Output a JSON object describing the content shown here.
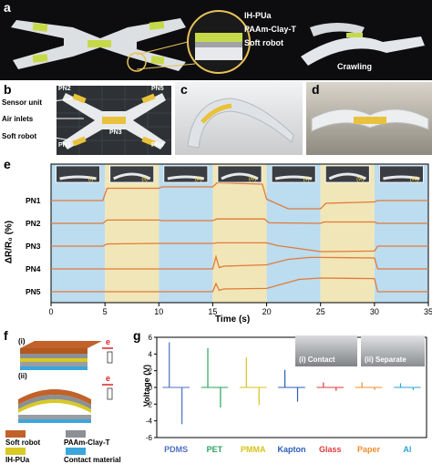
{
  "panel_a": {
    "label": "a",
    "layer_labels": [
      "IH-PUa",
      "PAAm-Clay-T",
      "Soft robot"
    ],
    "caption": "Crawling"
  },
  "panel_b": {
    "label": "b",
    "pn_labels": [
      "PN2",
      "PN5",
      "PN3",
      "PN1",
      "PN4"
    ],
    "callouts": [
      "Sensor unit",
      "Air inlets",
      "Soft robot"
    ]
  },
  "panel_c": {
    "label": "c"
  },
  "panel_d": {
    "label": "d"
  },
  "panel_e": {
    "label": "e",
    "stage_labels": [
      "(i)",
      "(ii)",
      "(iii)",
      "(iv)",
      "(v)",
      "(vi)",
      "(vii)"
    ]
  },
  "panel_f": {
    "label": "f",
    "sub_labels": [
      "(i)",
      "(ii)"
    ],
    "electron": "e",
    "legend": [
      "Soft robot",
      "PAAm-Clay-T",
      "IH-PUa",
      "Contact material"
    ]
  },
  "panel_g": {
    "label": "g",
    "inset_labels": [
      "(i) Contact",
      "(ii) Separate"
    ]
  },
  "chart_data": [
    {
      "type": "line",
      "panel": "e",
      "xlabel": "Time (s)",
      "ylabel": "ΔR/R₀ (%)",
      "xlim": [
        0,
        35
      ],
      "xticks": [
        0,
        5,
        10,
        15,
        20,
        25,
        30,
        35
      ],
      "shaded_regions": [
        {
          "x0": 0,
          "x1": 5,
          "color": "#bcdcef"
        },
        {
          "x0": 5,
          "x1": 10,
          "color": "#f1e6b8"
        },
        {
          "x0": 10,
          "x1": 15,
          "color": "#bcdcef"
        },
        {
          "x0": 15,
          "x1": 20,
          "color": "#f1e6b8"
        },
        {
          "x0": 20,
          "x1": 25,
          "color": "#bcdcef"
        },
        {
          "x0": 25,
          "x1": 30,
          "color": "#f1e6b8"
        },
        {
          "x0": 30,
          "x1": 35,
          "color": "#bcdcef"
        }
      ],
      "line_color": "#e07b39",
      "series": [
        {
          "name": "PN1",
          "x": [
            0,
            4.8,
            5.2,
            10,
            10.3,
            15,
            15.4,
            19.6,
            20,
            22,
            25,
            25.5,
            30,
            30.3,
            35
          ],
          "values": [
            0,
            0,
            0.45,
            0.45,
            0.5,
            0.5,
            0.65,
            0.6,
            0.05,
            -0.3,
            -0.3,
            -0.1,
            -0.05,
            0,
            0
          ]
        },
        {
          "name": "PN2",
          "x": [
            0,
            4.8,
            5.2,
            10,
            10.3,
            15,
            15.4,
            19.8,
            20.2,
            25,
            25.3,
            30,
            30.3,
            35
          ],
          "values": [
            0,
            0,
            0.12,
            0.12,
            0.1,
            0.1,
            0.16,
            0.16,
            0.02,
            0.0,
            0.05,
            0.05,
            0.0,
            0
          ]
        },
        {
          "name": "PN3",
          "x": [
            0,
            4.8,
            5.2,
            10,
            15,
            15.4,
            20,
            21,
            25,
            25.5,
            30,
            30.3,
            35
          ],
          "values": [
            0,
            0,
            0.08,
            0.1,
            0.1,
            0.12,
            0.12,
            0.02,
            -0.2,
            -0.2,
            -0.18,
            0,
            0
          ]
        },
        {
          "name": "PN4",
          "x": [
            0,
            15,
            15.3,
            15.6,
            16,
            20,
            22,
            24,
            25,
            30,
            30.3,
            35
          ],
          "values": [
            0,
            0,
            0.45,
            0.05,
            0.1,
            0.15,
            0.35,
            0.42,
            0.42,
            0.4,
            0,
            0
          ]
        },
        {
          "name": "PN5",
          "x": [
            0,
            15,
            15.3,
            15.6,
            16,
            20,
            23,
            25,
            30,
            30.3,
            35
          ],
          "values": [
            0,
            0,
            0.3,
            0.05,
            0.1,
            0.12,
            0.45,
            0.5,
            0.48,
            0,
            0
          ]
        }
      ]
    },
    {
      "type": "line",
      "panel": "g",
      "xlabel": "",
      "ylabel": "Voltage (V)",
      "ylim": [
        -6,
        6
      ],
      "yticks": [
        -6,
        -4,
        -2,
        0,
        2,
        4,
        6
      ],
      "categories": [
        "PDMS",
        "PET",
        "PMMA",
        "Kapton",
        "Glass",
        "Paper",
        "Al"
      ],
      "category_colors": [
        "#4f6fc4",
        "#2aa35a",
        "#d8c21a",
        "#2a5dbb",
        "#e03a3a",
        "#f08c2e",
        "#2aa3d8"
      ],
      "series": [
        {
          "name": "PDMS",
          "peak_pos": 5.4,
          "peak_neg": -4.4
        },
        {
          "name": "PET",
          "peak_pos": 4.7,
          "peak_neg": -2.4
        },
        {
          "name": "PMMA",
          "peak_pos": 3.6,
          "peak_neg": -2.1
        },
        {
          "name": "Kapton",
          "peak_pos": 2.1,
          "peak_neg": -1.7
        },
        {
          "name": "Glass",
          "peak_pos": 0.6,
          "peak_neg": -0.4
        },
        {
          "name": "Paper",
          "peak_pos": 0.6,
          "peak_neg": -0.3
        },
        {
          "name": "Al",
          "peak_pos": 0.5,
          "peak_neg": -0.3
        }
      ]
    }
  ]
}
